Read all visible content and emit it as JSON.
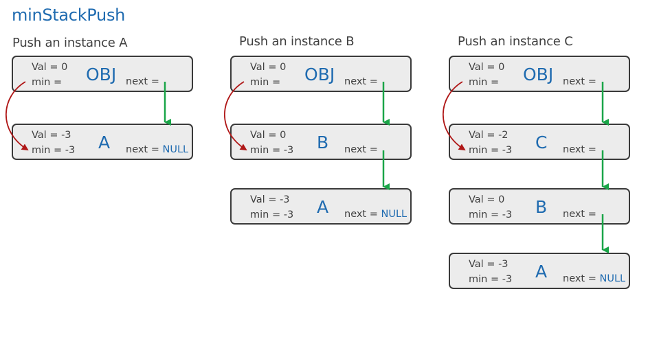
{
  "title": "minStackPush",
  "colors": {
    "accent": "#1f6bb0",
    "next_arrow": "#1aa548",
    "min_arrow": "#b01818",
    "node_fill": "#ececec",
    "node_border": "#3a3a3a"
  },
  "columns": [
    {
      "heading": "Push an instance A",
      "nodes": [
        {
          "name": "OBJ",
          "val": "Val = 0",
          "min": "min =",
          "next_label": "next =",
          "next_value": ""
        },
        {
          "name": "A",
          "val": "Val = -3",
          "min": "min = -3",
          "next_label": "next =",
          "next_value": "NULL"
        }
      ]
    },
    {
      "heading": "Push an instance B",
      "nodes": [
        {
          "name": "OBJ",
          "val": "Val = 0",
          "min": "min =",
          "next_label": "next =",
          "next_value": ""
        },
        {
          "name": "B",
          "val": "Val = 0",
          "min": "min = -3",
          "next_label": "next =",
          "next_value": ""
        },
        {
          "name": "A",
          "val": "Val = -3",
          "min": "min = -3",
          "next_label": "next =",
          "next_value": "NULL"
        }
      ]
    },
    {
      "heading": "Push an instance C",
      "nodes": [
        {
          "name": "OBJ",
          "val": "Val = 0",
          "min": "min =",
          "next_label": "next =",
          "next_value": ""
        },
        {
          "name": "C",
          "val": "Val = -2",
          "min": "min = -3",
          "next_label": "next =",
          "next_value": ""
        },
        {
          "name": "B",
          "val": "Val = 0",
          "min": "min = -3",
          "next_label": "next =",
          "next_value": ""
        },
        {
          "name": "A",
          "val": "Val = -3",
          "min": "min = -3",
          "next_label": "next =",
          "next_value": "NULL"
        }
      ]
    }
  ]
}
